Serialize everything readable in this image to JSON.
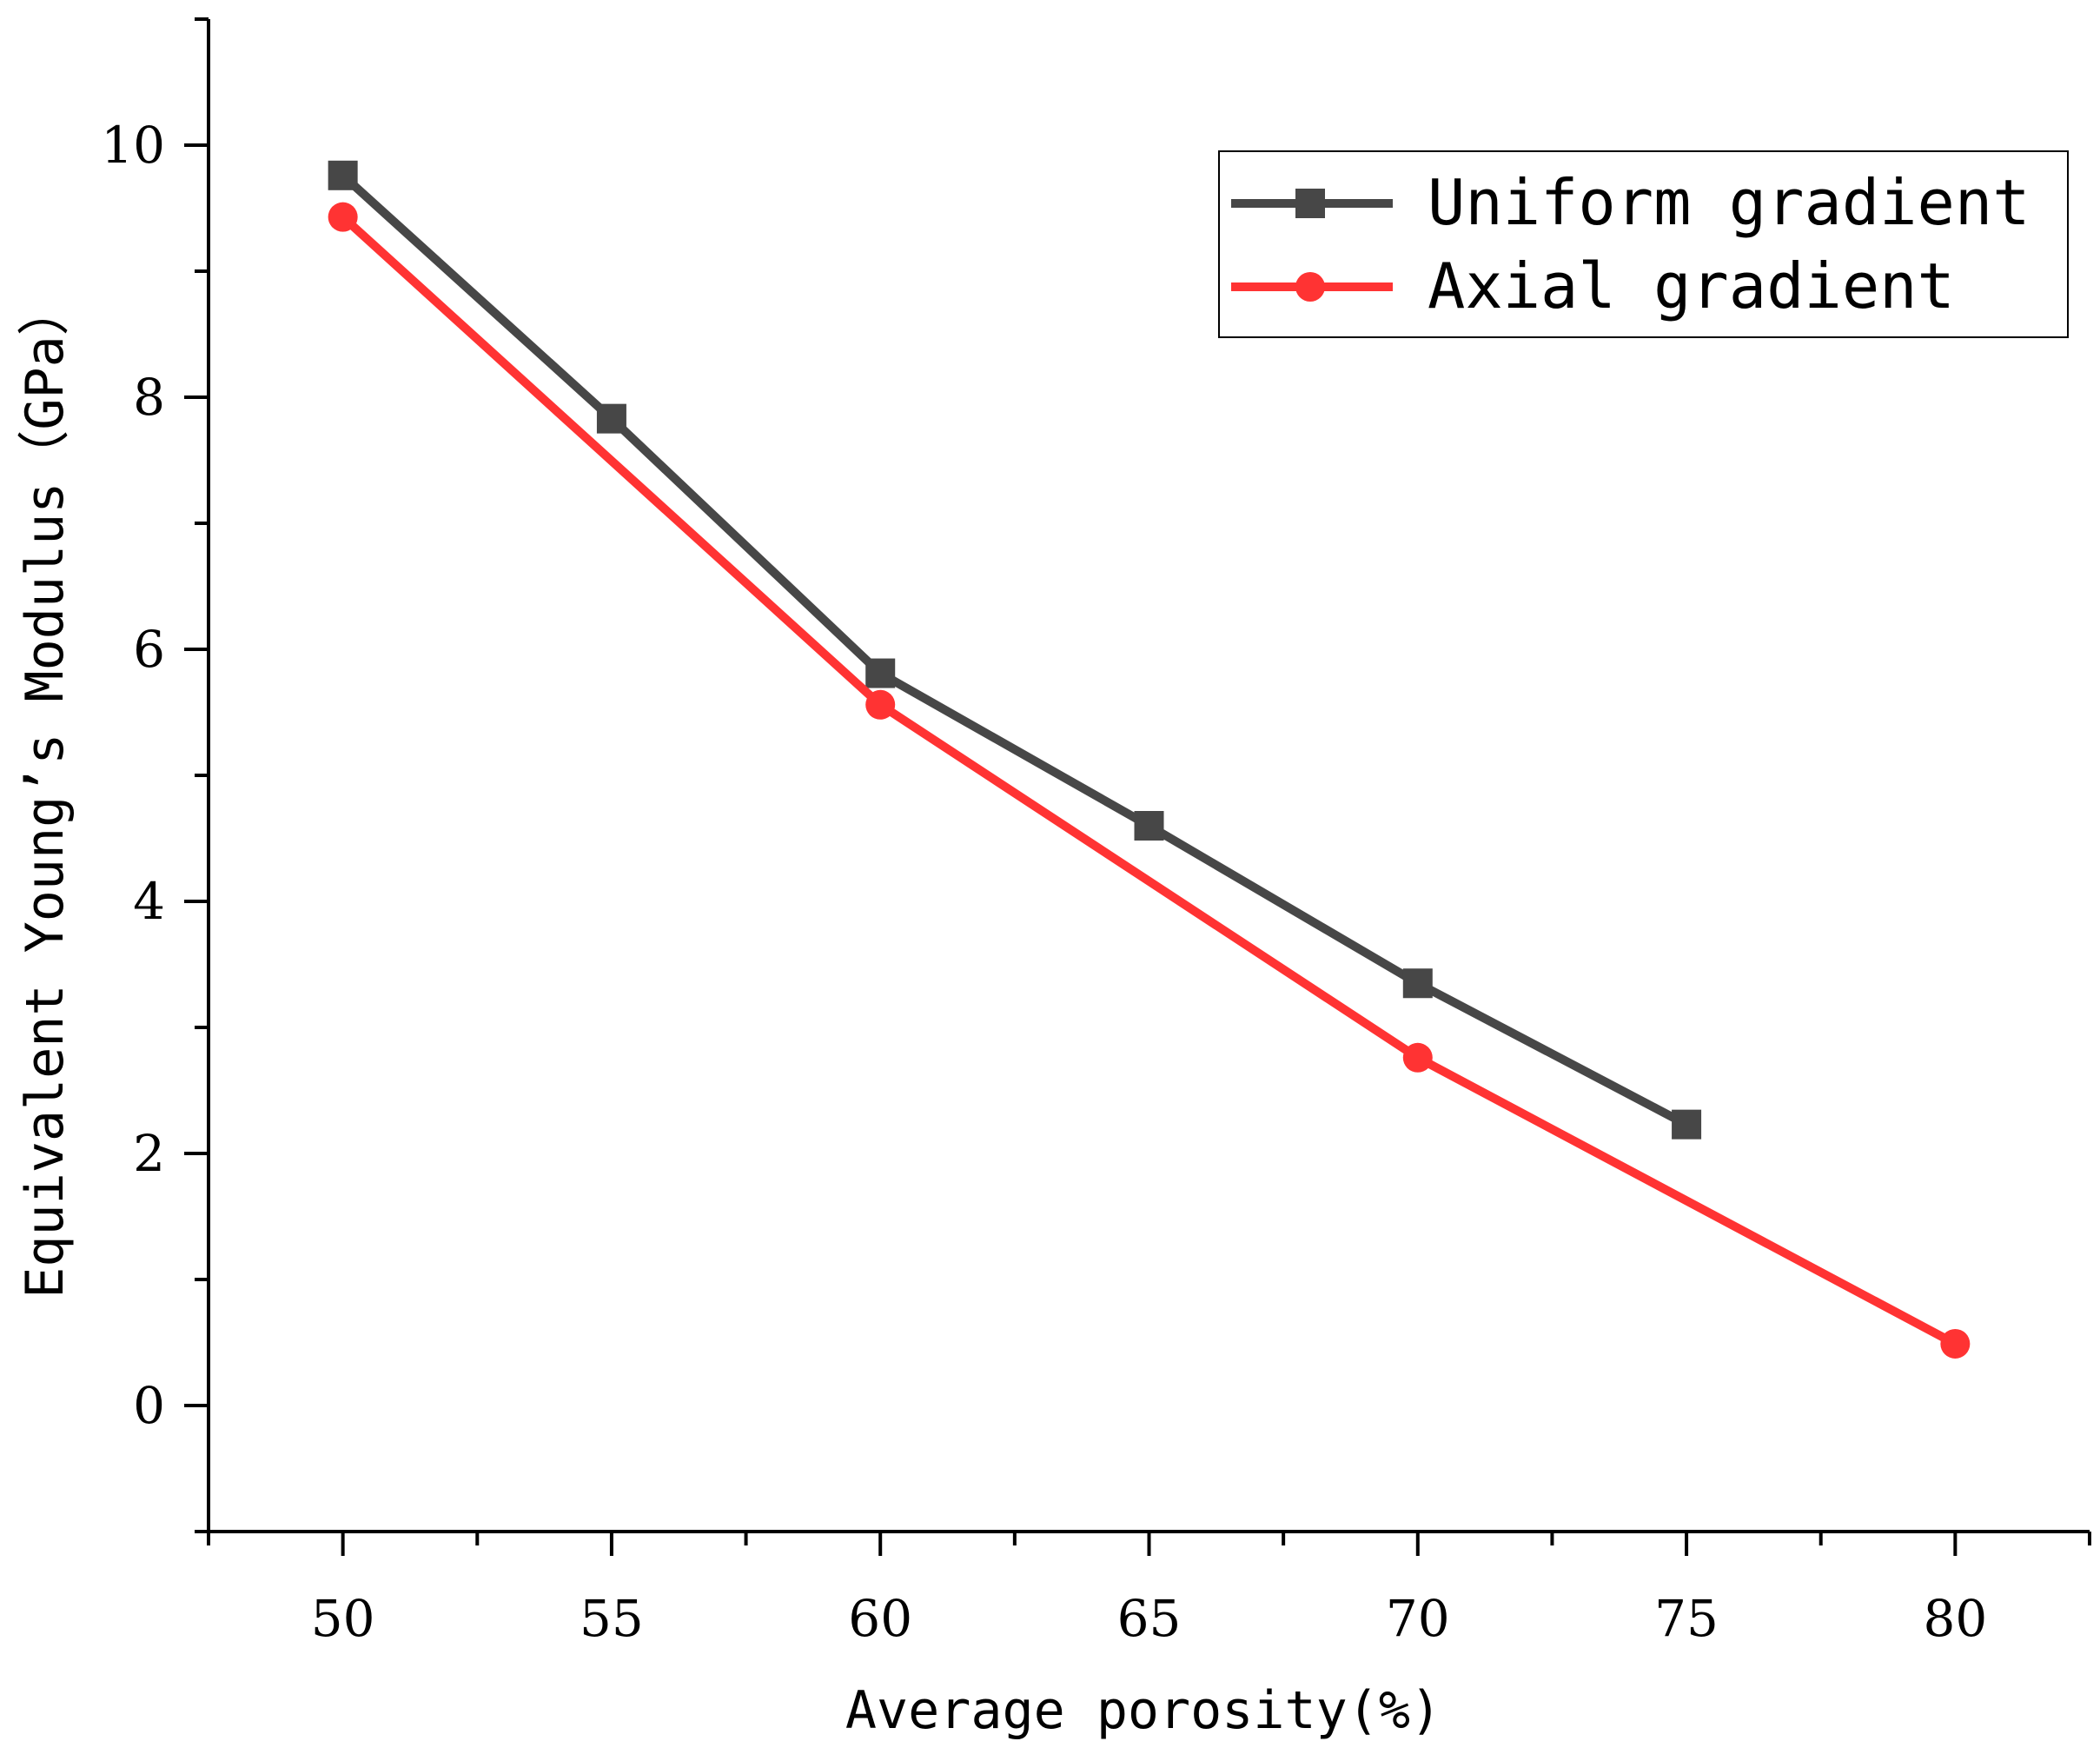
{
  "chart_data": {
    "type": "line",
    "xlabel": "Average porosity(%)",
    "ylabel": "Equivalent Young’s Modulus（GPa）",
    "xlim": [
      47.5,
      82.5
    ],
    "ylim": [
      -1,
      11
    ],
    "x_ticks": [
      50,
      55,
      60,
      65,
      70,
      75,
      80
    ],
    "y_ticks": [
      0,
      2,
      4,
      6,
      8,
      10
    ],
    "x_minor_ticks": [
      47.5,
      52.5,
      57.5,
      62.5,
      67.5,
      72.5,
      77.5,
      82.5
    ],
    "y_minor_ticks": [
      -1,
      1,
      3,
      5,
      7,
      9,
      11
    ],
    "grid": false,
    "legend_position": "top-right",
    "series": [
      {
        "name": "Uniform gradient",
        "marker": "square",
        "color": "#474747",
        "x": [
          50,
          55,
          60,
          65,
          70,
          75
        ],
        "y": [
          9.76,
          7.83,
          5.81,
          4.6,
          3.35,
          2.23
        ]
      },
      {
        "name": "Axial gradient",
        "marker": "circle",
        "color": "#ff3333",
        "x": [
          50,
          60,
          70,
          80
        ],
        "y": [
          9.43,
          5.56,
          2.76,
          0.49
        ]
      }
    ]
  }
}
